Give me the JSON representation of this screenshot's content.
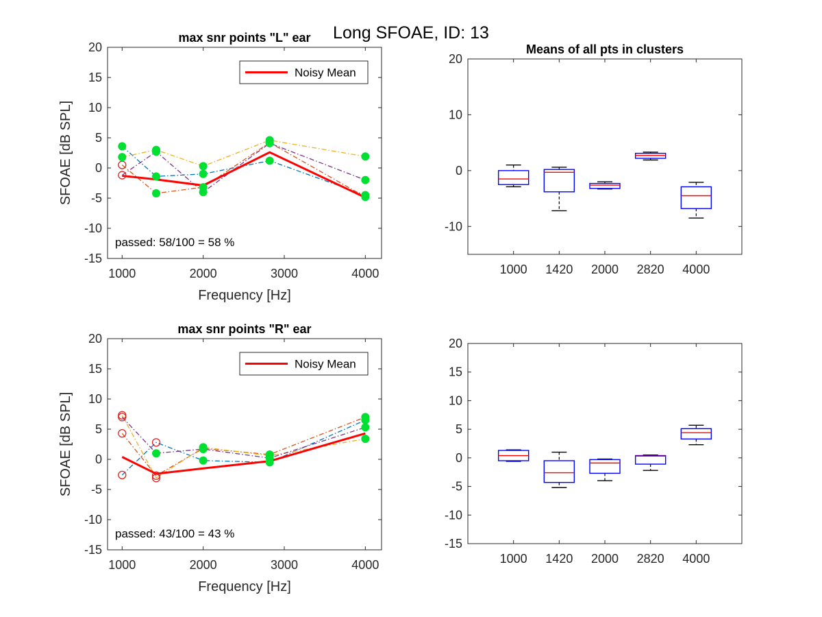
{
  "figure": {
    "suptitle": "Long SFOAE, ID: 13",
    "colors": {
      "mean_line": "#ff0000",
      "passed_marker": "#00e032",
      "failed_marker": "#e02020",
      "box_outline": "#0000ff",
      "box_median": "#ff0000",
      "whisker": "#000000",
      "series_palette": [
        "#0072bd",
        "#d95319",
        "#edb120",
        "#7e2f8e"
      ]
    }
  },
  "chart_data": [
    {
      "type": "line",
      "title": "max snr points \"L\" ear",
      "xlabel": "Frequency [Hz]",
      "ylabel": "SFOAE [dB SPL]",
      "xlim": [
        820,
        4200
      ],
      "ylim": [
        -15,
        20
      ],
      "xticks": [
        1000,
        2000,
        3000,
        4000
      ],
      "yticks": [
        -15,
        -10,
        -5,
        0,
        5,
        10,
        15,
        20
      ],
      "x": [
        1000,
        1420,
        2000,
        2820,
        4000
      ],
      "legend": {
        "entries": [
          "Noisy Mean"
        ],
        "location": "top-right"
      },
      "annotation": "passed: 58/100 = 58 %",
      "series": [
        {
          "values": [
            3.6,
            -1.4,
            -1.0,
            1.2,
            -4.5
          ],
          "passed": [
            true,
            true,
            true,
            true,
            true
          ],
          "line_style": "dash-dot"
        },
        {
          "values": [
            0.5,
            -4.2,
            -3.2,
            4.2,
            -4.8
          ],
          "passed": [
            false,
            true,
            true,
            true,
            true
          ],
          "line_style": "dash-dot"
        },
        {
          "values": [
            1.8,
            3.0,
            0.3,
            4.6,
            1.9
          ],
          "passed": [
            true,
            true,
            true,
            true,
            true
          ],
          "line_style": "dash-dot"
        },
        {
          "values": [
            -1.2,
            2.7,
            -4.0,
            4.1,
            -2.0
          ],
          "passed": [
            false,
            true,
            true,
            true,
            true
          ],
          "line_style": "dash-dot"
        },
        {
          "name": "Noisy Mean",
          "values": [
            -1.3,
            -1.9,
            -2.9,
            2.6,
            -4.9
          ],
          "line_style": "solid",
          "role": "mean"
        }
      ]
    },
    {
      "type": "box",
      "title": "Means of all pts in clusters",
      "categories": [
        "1000",
        "1420",
        "2000",
        "2820",
        "4000"
      ],
      "ylim": [
        -15,
        20
      ],
      "yticks": [
        -10,
        0,
        10,
        20
      ],
      "boxes": [
        {
          "whisker_low": -2.9,
          "q1": -2.5,
          "median": -1.5,
          "q3": 0.0,
          "whisker_high": 1.0
        },
        {
          "whisker_low": -7.2,
          "q1": -3.8,
          "median": -0.3,
          "q3": 0.2,
          "whisker_high": 0.6
        },
        {
          "whisker_low": -3.3,
          "q1": -3.2,
          "median": -2.6,
          "q3": -2.3,
          "whisker_high": -2.0
        },
        {
          "whisker_low": 1.9,
          "q1": 2.2,
          "median": 2.7,
          "q3": 3.1,
          "whisker_high": 3.3
        },
        {
          "whisker_low": -8.5,
          "q1": -6.8,
          "median": -4.5,
          "q3": -2.9,
          "whisker_high": -2.1
        }
      ]
    },
    {
      "type": "line",
      "title": "max snr points \"R\" ear",
      "xlabel": "Frequency [Hz]",
      "ylabel": "SFOAE [dB SPL]",
      "xlim": [
        820,
        4200
      ],
      "ylim": [
        -15,
        20
      ],
      "xticks": [
        1000,
        2000,
        3000,
        4000
      ],
      "yticks": [
        -15,
        -10,
        -5,
        0,
        5,
        10,
        15,
        20
      ],
      "x": [
        1000,
        1420,
        2000,
        2820,
        4000
      ],
      "legend": {
        "entries": [
          "Noisy Mean"
        ],
        "location": "top-right"
      },
      "annotation": "passed: 43/100 = 43 %",
      "series": [
        {
          "values": [
            -2.6,
            2.8,
            -0.2,
            -0.5,
            6.5
          ],
          "passed": [
            false,
            false,
            true,
            true,
            true
          ],
          "line_style": "dash-dot"
        },
        {
          "values": [
            4.3,
            -2.7,
            1.8,
            0.8,
            7.0
          ],
          "passed": [
            false,
            false,
            true,
            true,
            true
          ],
          "line_style": "dash-dot"
        },
        {
          "values": [
            7.3,
            -3.1,
            2.0,
            0.6,
            3.4
          ],
          "passed": [
            false,
            false,
            true,
            true,
            true
          ],
          "line_style": "dash-dot"
        },
        {
          "values": [
            7.0,
            1.0,
            1.7,
            0.2,
            5.3
          ],
          "passed": [
            false,
            true,
            true,
            true,
            true
          ],
          "line_style": "dash-dot"
        },
        {
          "name": "Noisy Mean",
          "values": [
            0.4,
            -2.4,
            -1.5,
            -0.3,
            4.3
          ],
          "line_style": "solid",
          "role": "mean"
        }
      ]
    },
    {
      "type": "box",
      "title": "",
      "categories": [
        "1000",
        "1420",
        "2000",
        "2820",
        "4000"
      ],
      "ylim": [
        -15,
        20
      ],
      "yticks": [
        -15,
        -10,
        -5,
        0,
        5,
        10,
        15,
        20
      ],
      "boxes": [
        {
          "whisker_low": -0.6,
          "q1": -0.5,
          "median": 0.4,
          "q3": 1.3,
          "whisker_high": 1.4
        },
        {
          "whisker_low": -5.2,
          "q1": -4.3,
          "median": -2.6,
          "q3": -0.5,
          "whisker_high": 1.0
        },
        {
          "whisker_low": -4.0,
          "q1": -2.7,
          "median": -0.9,
          "q3": -0.3,
          "whisker_high": -0.2
        },
        {
          "whisker_low": -2.2,
          "q1": -1.1,
          "median": 0.3,
          "q3": 0.4,
          "whisker_high": 0.5
        },
        {
          "whisker_low": 2.3,
          "q1": 3.3,
          "median": 4.4,
          "q3": 5.1,
          "whisker_high": 5.7
        }
      ]
    }
  ]
}
